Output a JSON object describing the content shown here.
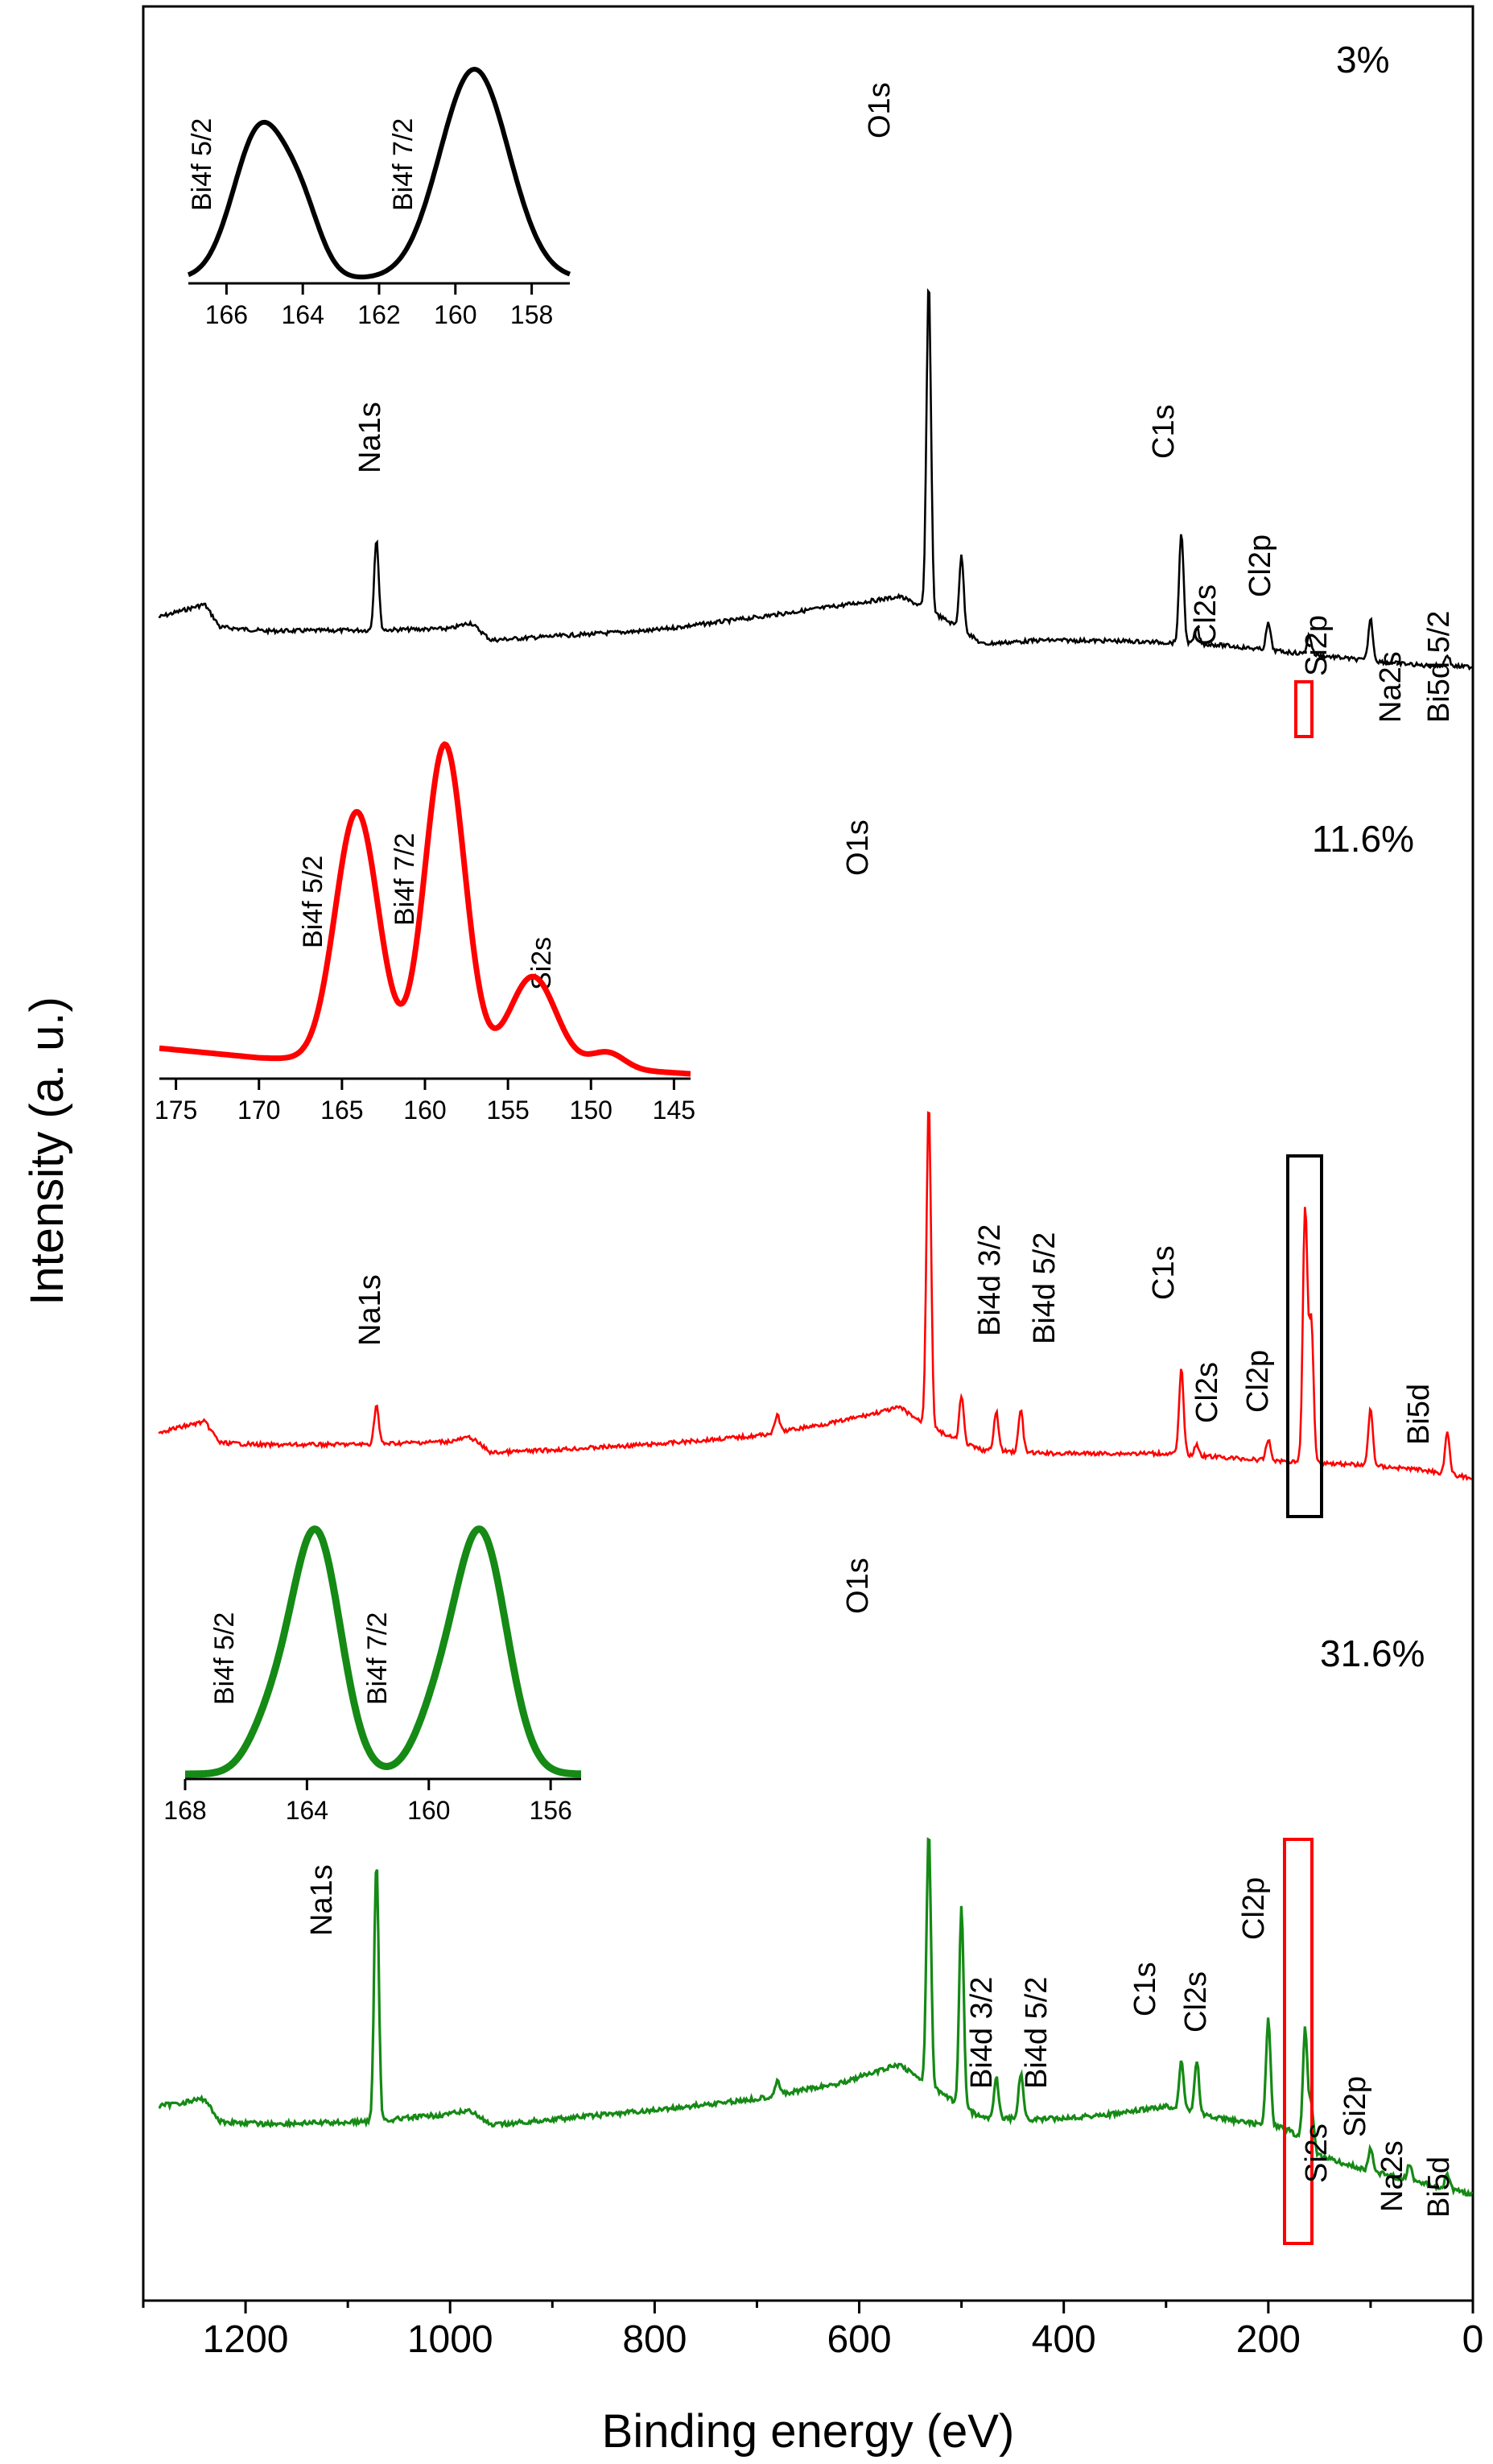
{
  "chart_data": {
    "type": "line",
    "title": "",
    "xlabel": "Binding energy (eV)",
    "ylabel": "Intensity (a. u.)",
    "xlim": [
      1300,
      0
    ],
    "x_ticks": [
      1200,
      1000,
      800,
      600,
      400,
      200,
      0
    ],
    "y_ticks": [],
    "grid": false,
    "series": [
      {
        "name": "3%",
        "color": "#000000",
        "concentration_label": "3%",
        "baseline": [
          [
            1285,
            0.35
          ],
          [
            1240,
            0.52
          ],
          [
            1225,
            0.22
          ],
          [
            1180,
            0.17
          ],
          [
            1080,
            0.18
          ],
          [
            1000,
            0.2
          ],
          [
            980,
            0.28
          ],
          [
            960,
            0.05
          ],
          [
            900,
            0.1
          ],
          [
            800,
            0.18
          ],
          [
            700,
            0.35
          ],
          [
            620,
            0.5
          ],
          [
            560,
            0.62
          ],
          [
            540,
            0.5
          ],
          [
            500,
            0.2
          ],
          [
            480,
            0.0
          ],
          [
            420,
            0.05
          ],
          [
            350,
            0.04
          ],
          [
            300,
            0.02
          ],
          [
            250,
            -0.01
          ],
          [
            200,
            -0.08
          ],
          [
            150,
            -0.15
          ],
          [
            100,
            -0.22
          ],
          [
            50,
            -0.28
          ],
          [
            0,
            -0.3
          ]
        ],
        "peaks": [
          [
            1072,
            1.2
          ],
          [
            532,
            4.3
          ],
          [
            500,
            0.95
          ],
          [
            285,
            1.45
          ],
          [
            270,
            0.2
          ],
          [
            200,
            0.35
          ],
          [
            160,
            0.25
          ],
          [
            100,
            0.55
          ],
          [
            25,
            0.15
          ]
        ],
        "labels": [
          "O1s",
          "Na1s",
          "C1s",
          "Cl2s",
          "Cl2p",
          "Si2p",
          "Na2s",
          "Bi5d 5/2"
        ],
        "inset": {
          "xlim": [
            167,
            157
          ],
          "x_ticks": [
            166,
            164,
            162,
            160,
            158
          ],
          "peaks": [
            [
              165.1,
              0.72,
              0.7
            ],
            [
              164.0,
              0.25,
              0.5
            ],
            [
              159.5,
              1.0,
              0.9
            ]
          ],
          "labels": [
            "Bi4f 5/2",
            "Bi4f 7/2"
          ]
        }
      },
      {
        "name": "11.6%",
        "color": "#ff0000",
        "concentration_label": "11.6%",
        "baseline": [
          [
            1285,
            0.35
          ],
          [
            1240,
            0.5
          ],
          [
            1225,
            0.2
          ],
          [
            1180,
            0.17
          ],
          [
            1080,
            0.18
          ],
          [
            1000,
            0.22
          ],
          [
            980,
            0.28
          ],
          [
            960,
            0.06
          ],
          [
            900,
            0.1
          ],
          [
            800,
            0.18
          ],
          [
            700,
            0.3
          ],
          [
            620,
            0.5
          ],
          [
            560,
            0.7
          ],
          [
            540,
            0.5
          ],
          [
            500,
            0.2
          ],
          [
            480,
            0.1
          ],
          [
            420,
            0.05
          ],
          [
            350,
            0.05
          ],
          [
            300,
            0.05
          ],
          [
            250,
            0.0
          ],
          [
            200,
            -0.05
          ],
          [
            150,
            -0.08
          ],
          [
            100,
            -0.12
          ],
          [
            50,
            -0.18
          ],
          [
            0,
            -0.3
          ]
        ],
        "peaks": [
          [
            1072,
            0.55
          ],
          [
            680,
            0.25
          ],
          [
            532,
            4.6
          ],
          [
            500,
            0.65
          ],
          [
            466,
            0.55
          ],
          [
            442,
            0.6
          ],
          [
            285,
            1.2
          ],
          [
            270,
            0.15
          ],
          [
            200,
            0.3
          ],
          [
            164,
            3.6
          ],
          [
            158,
            2.0
          ],
          [
            100,
            0.8
          ],
          [
            25,
            0.6
          ]
        ],
        "labels": [
          "O1s",
          "Na1s",
          "Bi4d 3/2",
          "Bi4d 5/2",
          "C1s",
          "Cl2s",
          "Cl2p",
          "Bi5d"
        ],
        "inset": {
          "xlim": [
            176,
            144
          ],
          "x_ticks": [
            175,
            170,
            165,
            160,
            155,
            150,
            145
          ],
          "background": [
            [
              176,
              0.08
            ],
            [
              170,
              0.05
            ],
            [
              160,
              0.03
            ],
            [
              150,
              0.02
            ],
            [
              144,
              0.0
            ]
          ],
          "peaks": [
            [
              164.1,
              0.78,
              1.3
            ],
            [
              158.8,
              1.0,
              1.2
            ],
            [
              153.5,
              0.28,
              1.4
            ],
            [
              149,
              0.05,
              1.0
            ]
          ],
          "labels": [
            "Bi4f 5/2",
            "Bi4f 7/2",
            "Si2s"
          ]
        }
      },
      {
        "name": "31.6%",
        "color": "#158a15",
        "concentration_label": "31.6%",
        "baseline": [
          [
            1285,
            0.35
          ],
          [
            1240,
            0.45
          ],
          [
            1225,
            0.15
          ],
          [
            1180,
            0.12
          ],
          [
            1080,
            0.15
          ],
          [
            1000,
            0.25
          ],
          [
            980,
            0.3
          ],
          [
            960,
            0.1
          ],
          [
            900,
            0.18
          ],
          [
            800,
            0.3
          ],
          [
            700,
            0.45
          ],
          [
            620,
            0.65
          ],
          [
            560,
            0.9
          ],
          [
            540,
            0.7
          ],
          [
            500,
            0.35
          ],
          [
            480,
            0.2
          ],
          [
            420,
            0.18
          ],
          [
            350,
            0.25
          ],
          [
            300,
            0.35
          ],
          [
            250,
            0.2
          ],
          [
            200,
            0.1
          ],
          [
            180,
            0.05
          ],
          [
            150,
            -0.3
          ],
          [
            100,
            -0.5
          ],
          [
            50,
            -0.65
          ],
          [
            0,
            -0.8
          ]
        ],
        "peaks": [
          [
            1072,
            3.4
          ],
          [
            680,
            0.2
          ],
          [
            532,
            3.3
          ],
          [
            500,
            2.6
          ],
          [
            466,
            0.55
          ],
          [
            442,
            0.6
          ],
          [
            285,
            0.65
          ],
          [
            270,
            0.7
          ],
          [
            200,
            1.4
          ],
          [
            164,
            1.5
          ],
          [
            158,
            0.6
          ],
          [
            100,
            0.3
          ],
          [
            62,
            0.2
          ],
          [
            25,
            0.2
          ]
        ],
        "labels": [
          "O1s",
          "Na1s",
          "Bi4d 3/2",
          "Bi4d 5/2",
          "C1s",
          "Cl2s",
          "Cl2p",
          "Si2s",
          "Si2p",
          "Na2s",
          "Bi5d"
        ],
        "inset": {
          "xlim": [
            168,
            155
          ],
          "x_ticks": [
            168,
            164,
            160,
            156
          ],
          "peaks": [
            [
              163.7,
              1.0,
              0.8
            ],
            [
              165.2,
              0.2,
              0.7
            ],
            [
              158.3,
              1.0,
              0.85
            ],
            [
              159.8,
              0.2,
              0.7
            ]
          ],
          "labels": [
            "Bi4f 5/2",
            "Bi4f 7/2"
          ]
        }
      }
    ]
  }
}
